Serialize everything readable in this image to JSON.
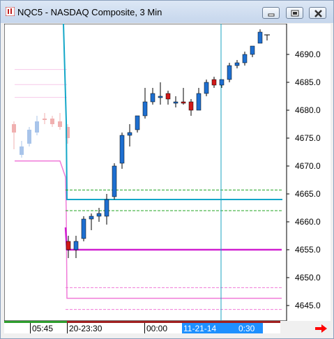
{
  "window": {
    "title": "NQC5 - NASDAQ Composite, 3 Min",
    "minimize_label": "minimize",
    "restore_label": "restore",
    "close_label": "close"
  },
  "price_axis": {
    "labels": [
      "4690.0",
      "4685.0",
      "4680.0",
      "4675.0",
      "4670.0",
      "4665.0",
      "4660.0",
      "4655.0",
      "4650.0",
      "4645.0"
    ]
  },
  "time_axis": {
    "labels": [
      "05:45",
      "20-23:30",
      "00:00"
    ],
    "selected_date": "11-21-14",
    "selected_time": "0:30"
  },
  "colors": {
    "up_candle": "#1e6fd0",
    "down_candle": "#d01818",
    "cyan_line": "#14a7c8",
    "magenta_line": "#d020d0",
    "pink_line": "#f07ad8",
    "green_dashed": "#23a423",
    "vertical_cursor": "#1aa3c0",
    "arrow": "#ff0000"
  },
  "chart_data": {
    "type": "candlestick",
    "title": "NQC5 - NASDAQ Composite, 3 Min",
    "ylim": [
      4643,
      4697
    ],
    "candles": [
      {
        "o": 4656.5,
        "h": 4657.5,
        "l": 4653.5,
        "c": 4655.0,
        "dir": "down"
      },
      {
        "o": 4655.0,
        "h": 4657.5,
        "l": 4653.5,
        "c": 4656.5,
        "dir": "up"
      },
      {
        "o": 4657.0,
        "h": 4661.0,
        "l": 4656.5,
        "c": 4660.5,
        "dir": "up"
      },
      {
        "o": 4660.5,
        "h": 4661.5,
        "l": 4658.5,
        "c": 4661.0,
        "dir": "up"
      },
      {
        "o": 4661.0,
        "h": 4662.5,
        "l": 4660.0,
        "c": 4661.5,
        "dir": "up"
      },
      {
        "o": 4661.0,
        "h": 4665.0,
        "l": 4659.5,
        "c": 4664.0,
        "dir": "up"
      },
      {
        "o": 4664.5,
        "h": 4670.5,
        "l": 4664.0,
        "c": 4670.0,
        "dir": "up"
      },
      {
        "o": 4670.5,
        "h": 4676.0,
        "l": 4669.5,
        "c": 4675.5,
        "dir": "up"
      },
      {
        "o": 4675.5,
        "h": 4677.5,
        "l": 4673.5,
        "c": 4676.0,
        "dir": "up"
      },
      {
        "o": 4676.5,
        "h": 4679.0,
        "l": 4676.0,
        "c": 4679.0,
        "dir": "up"
      },
      {
        "o": 4679.0,
        "h": 4684.0,
        "l": 4678.5,
        "c": 4681.5,
        "dir": "up"
      },
      {
        "o": 4681.5,
        "h": 4684.0,
        "l": 4681.0,
        "c": 4683.0,
        "dir": "up"
      },
      {
        "o": 4682.5,
        "h": 4685.0,
        "l": 4681.0,
        "c": 4682.5,
        "dir": "up"
      },
      {
        "o": 4683.0,
        "h": 4683.5,
        "l": 4681.0,
        "c": 4682.0,
        "dir": "down"
      },
      {
        "o": 4681.5,
        "h": 4682.5,
        "l": 4680.5,
        "c": 4681.5,
        "dir": "up"
      },
      {
        "o": 4681.5,
        "h": 4684.0,
        "l": 4681.0,
        "c": 4681.5,
        "dir": "down"
      },
      {
        "o": 4681.5,
        "h": 4682.0,
        "l": 4679.0,
        "c": 4680.0,
        "dir": "down"
      },
      {
        "o": 4680.0,
        "h": 4684.0,
        "l": 4680.0,
        "c": 4683.0,
        "dir": "up"
      },
      {
        "o": 4683.0,
        "h": 4685.5,
        "l": 4682.5,
        "c": 4685.0,
        "dir": "up"
      },
      {
        "o": 4685.5,
        "h": 4686.0,
        "l": 4684.0,
        "c": 4684.5,
        "dir": "down"
      },
      {
        "o": 4684.5,
        "h": 4685.5,
        "l": 4684.0,
        "c": 4685.5,
        "dir": "up"
      },
      {
        "o": 4685.5,
        "h": 4688.5,
        "l": 4685.0,
        "c": 4688.0,
        "dir": "up"
      },
      {
        "o": 4688.0,
        "h": 4689.0,
        "l": 4687.5,
        "c": 4688.5,
        "dir": "up"
      },
      {
        "o": 4688.5,
        "h": 4690.5,
        "l": 4688.0,
        "c": 4690.0,
        "dir": "up"
      },
      {
        "o": 4690.0,
        "h": 4691.5,
        "l": 4689.5,
        "c": 4691.5,
        "dir": "up"
      },
      {
        "o": 4692.0,
        "h": 4694.5,
        "l": 4692.0,
        "c": 4694.0,
        "dir": "up"
      }
    ],
    "prior_session_candles": [
      {
        "o": 4676.0,
        "h": 4678.0,
        "l": 4673.0,
        "c": 4677.5,
        "dir": "down"
      },
      {
        "o": 4672.0,
        "h": 4674.5,
        "l": 4671.5,
        "c": 4673.5,
        "dir": "up"
      },
      {
        "o": 4674.0,
        "h": 4677.0,
        "l": 4673.5,
        "c": 4676.5,
        "dir": "up"
      },
      {
        "o": 4676.0,
        "h": 4679.0,
        "l": 4675.5,
        "c": 4678.0,
        "dir": "up"
      },
      {
        "o": 4678.5,
        "h": 4679.5,
        "l": 4677.5,
        "c": 4678.5,
        "dir": "down"
      },
      {
        "o": 4678.5,
        "h": 4679.0,
        "l": 4677.0,
        "c": 4677.5,
        "dir": "down"
      },
      {
        "o": 4678.0,
        "h": 4679.5,
        "l": 4676.5,
        "c": 4677.0,
        "dir": "down"
      },
      {
        "o": 4677.0,
        "h": 4677.5,
        "l": 4674.0,
        "c": 4675.0,
        "dir": "down"
      }
    ],
    "levels": [
      {
        "name": "cyan",
        "value": 4664.0
      },
      {
        "name": "magenta",
        "value": 4655.0
      },
      {
        "name": "green-upper",
        "value": 4665.7
      },
      {
        "name": "green-lower",
        "value": 4662.0
      },
      {
        "name": "pink-upper",
        "value": 4648.2
      },
      {
        "name": "pink-mid",
        "value": 4646.3
      },
      {
        "name": "pink-lower",
        "value": 4644.3
      }
    ]
  }
}
